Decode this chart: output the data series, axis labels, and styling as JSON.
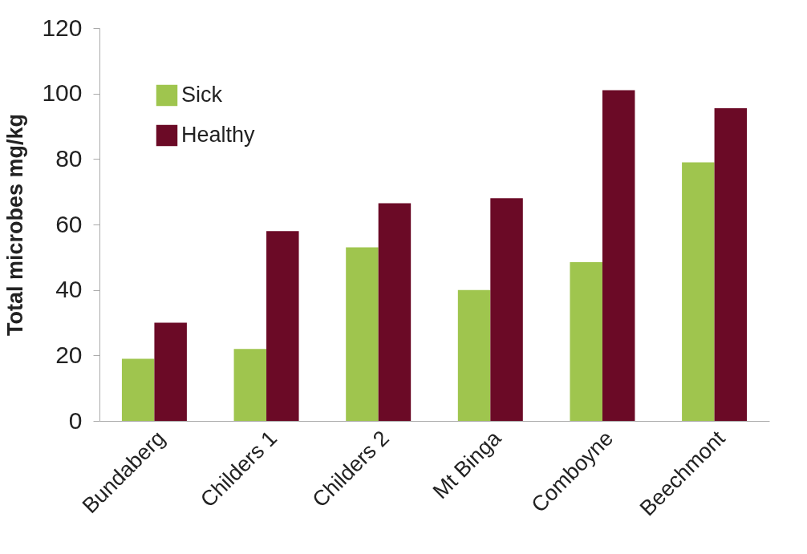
{
  "chart_data": {
    "type": "bar",
    "ylabel": "Total microbes mg/kg",
    "categories": [
      "Bundaberg",
      "Childers 1",
      "Childers 2",
      "Mt Binga",
      "Comboyne",
      "Beechmont"
    ],
    "series": [
      {
        "name": "Sick",
        "color": "#9fc54e",
        "values": [
          19,
          22,
          53,
          40,
          48.5,
          79
        ]
      },
      {
        "name": "Healthy",
        "color": "#6b0a26",
        "values": [
          30,
          58,
          66.5,
          68,
          101,
          95.5
        ]
      }
    ],
    "ylim": [
      0,
      120
    ],
    "yticks": [
      0,
      20,
      40,
      60,
      80,
      100,
      120
    ],
    "grid": false,
    "legend": "top left"
  }
}
